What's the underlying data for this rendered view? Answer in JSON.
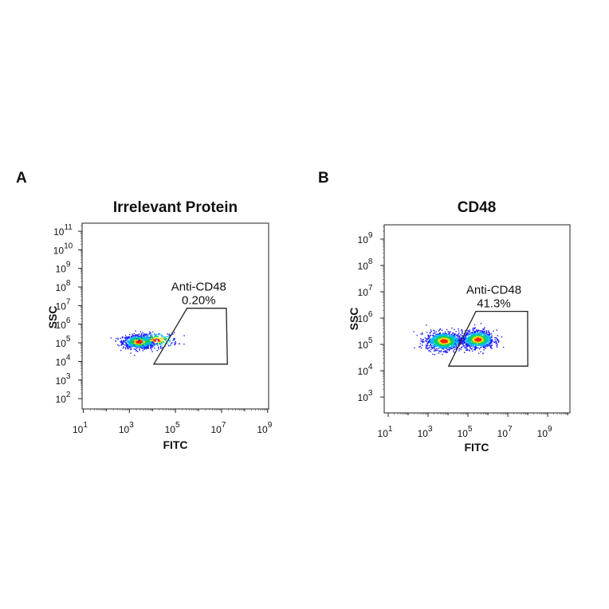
{
  "chart_data": [
    {
      "type": "scatter",
      "panel_label": "A",
      "title": "Irrelevant Protein",
      "xlabel": "FITC",
      "ylabel": "SSC",
      "x_scale": "log",
      "y_scale": "log",
      "xlim": [
        8.9,
        1100000000.0
      ],
      "ylim": [
        28.0,
        270000000000.0
      ],
      "x_tick_exponents": [
        1,
        3,
        5,
        7,
        9
      ],
      "y_tick_exponents": [
        2,
        3,
        4,
        5,
        6,
        7,
        8,
        9,
        10,
        11
      ],
      "grid": false,
      "gate": {
        "name": "Anti-CD48",
        "percent": "0.20%",
        "fitc": [
          11500,
          320000,
          16000000,
          18000000
        ],
        "ssc": [
          7200,
          7200000,
          7200000,
          7200
        ]
      },
      "populations": [
        {
          "fitc_center": 2500,
          "ssc_center": 120000,
          "fitc_spread_decades": 0.35,
          "ssc_spread_decades": 0.18,
          "count": 900
        },
        {
          "fitc_center": 15000,
          "ssc_center": 150000,
          "fitc_spread_decades": 0.45,
          "ssc_spread_decades": 0.2,
          "count": 220
        }
      ],
      "density_colors": [
        "#1a1aff",
        "#00b4ff",
        "#00d060",
        "#f0e000",
        "#ff2000"
      ]
    },
    {
      "type": "scatter",
      "panel_label": "B",
      "title": "CD48",
      "xlabel": "FITC",
      "ylabel": "SSC",
      "x_scale": "log",
      "y_scale": "log",
      "xlim": [
        6.3,
        13000000000.0
      ],
      "ylim": [
        250.0,
        3500000000.0
      ],
      "x_tick_exponents": [
        1,
        3,
        5,
        7,
        9
      ],
      "y_tick_exponents": [
        3,
        4,
        5,
        6,
        7,
        8,
        9
      ],
      "grid": false,
      "gate": {
        "name": "Anti-CD48",
        "percent": "41.3%",
        "fitc": [
          10700,
          250000,
          98000000,
          100000000
        ],
        "ssc": [
          15000,
          1800000,
          1800000,
          15000
        ]
      },
      "populations": [
        {
          "fitc_center": 6000,
          "ssc_center": 140000,
          "fitc_spread_decades": 0.45,
          "ssc_spread_decades": 0.17,
          "count": 1100
        },
        {
          "fitc_center": 300000,
          "ssc_center": 160000,
          "fitc_spread_decades": 0.4,
          "ssc_spread_decades": 0.17,
          "count": 900
        }
      ],
      "density_colors": [
        "#1a1aff",
        "#00b4ff",
        "#00d060",
        "#f0e000",
        "#ff2000"
      ]
    }
  ]
}
